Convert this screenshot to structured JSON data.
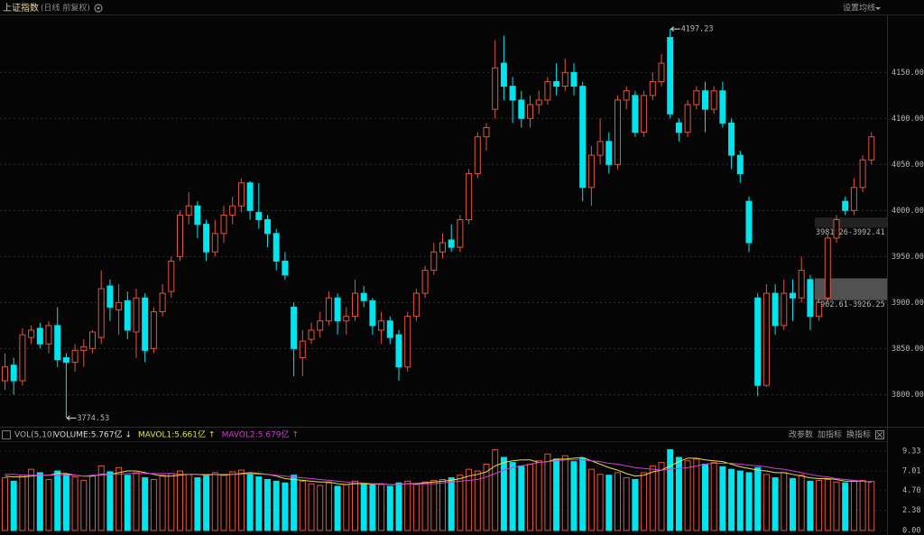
{
  "chart_data": {
    "type": "candlestick",
    "title": "上证指数",
    "subtitle": "(日线 前复权)",
    "settings_button": "设置均线",
    "up_color": "#e0533c",
    "down_color": "#00e4ee",
    "grid": true,
    "ylim": [
      3768,
      4214
    ],
    "yticks": [
      {
        "value": 3800,
        "label": "3800.00"
      },
      {
        "value": 3850,
        "label": "3850.00"
      },
      {
        "value": 3900,
        "label": "3900.00"
      },
      {
        "value": 3950,
        "label": "3950.00"
      },
      {
        "value": 4000,
        "label": "4000.00"
      },
      {
        "value": 4050,
        "label": "4050.00"
      },
      {
        "value": 4100,
        "label": "4100.00"
      },
      {
        "value": 4150,
        "label": "4150.00"
      }
    ],
    "candles": [
      [
        3815,
        3845,
        3805,
        3830
      ],
      [
        3832,
        3840,
        3800,
        3815
      ],
      [
        3815,
        3872,
        3810,
        3865
      ],
      [
        3862,
        3875,
        3855,
        3870
      ],
      [
        3872,
        3878,
        3850,
        3855
      ],
      [
        3855,
        3880,
        3845,
        3875
      ],
      [
        3875,
        3895,
        3830,
        3838
      ],
      [
        3840,
        3845,
        3774.53,
        3835
      ],
      [
        3835,
        3855,
        3825,
        3848
      ],
      [
        3848,
        3860,
        3830,
        3852
      ],
      [
        3850,
        3870,
        3845,
        3868
      ],
      [
        3862,
        3935,
        3855,
        3915
      ],
      [
        3918,
        3925,
        3880,
        3895
      ],
      [
        3892,
        3920,
        3865,
        3900
      ],
      [
        3902,
        3912,
        3860,
        3870
      ],
      [
        3868,
        3915,
        3840,
        3905
      ],
      [
        3905,
        3910,
        3835,
        3848
      ],
      [
        3850,
        3895,
        3845,
        3890
      ],
      [
        3890,
        3920,
        3885,
        3910
      ],
      [
        3912,
        3950,
        3905,
        3945
      ],
      [
        3950,
        4000,
        3945,
        3995
      ],
      [
        3995,
        4020,
        3985,
        4005
      ],
      [
        4005,
        4010,
        3970,
        3985
      ],
      [
        3985,
        3990,
        3945,
        3955
      ],
      [
        3955,
        3990,
        3950,
        3975
      ],
      [
        3975,
        4005,
        3965,
        3995
      ],
      [
        3995,
        4015,
        3985,
        4005
      ],
      [
        4005,
        4035,
        3998,
        4030
      ],
      [
        4030,
        4032,
        3990,
        4000
      ],
      [
        3998,
        4030,
        3980,
        3990
      ],
      [
        3990,
        3995,
        3960,
        3975
      ],
      [
        3975,
        3980,
        3935,
        3945
      ],
      [
        3945,
        3955,
        3925,
        3930
      ],
      [
        3895,
        3900,
        3820,
        3850
      ],
      [
        3840,
        3870,
        3820,
        3858
      ],
      [
        3860,
        3878,
        3855,
        3870
      ],
      [
        3870,
        3890,
        3862,
        3880
      ],
      [
        3880,
        3912,
        3875,
        3905
      ],
      [
        3905,
        3910,
        3865,
        3880
      ],
      [
        3880,
        3895,
        3865,
        3885
      ],
      [
        3885,
        3925,
        3880,
        3910
      ],
      [
        3910,
        3918,
        3895,
        3902
      ],
      [
        3902,
        3905,
        3865,
        3875
      ],
      [
        3870,
        3890,
        3855,
        3880
      ],
      [
        3880,
        3885,
        3855,
        3862
      ],
      [
        3865,
        3870,
        3815,
        3830
      ],
      [
        3830,
        3890,
        3825,
        3885
      ],
      [
        3885,
        3915,
        3880,
        3910
      ],
      [
        3910,
        3940,
        3905,
        3935
      ],
      [
        3935,
        3965,
        3930,
        3955
      ],
      [
        3955,
        3975,
        3948,
        3965
      ],
      [
        3968,
        3985,
        3955,
        3960
      ],
      [
        3960,
        3995,
        3955,
        3990
      ],
      [
        3990,
        4045,
        3985,
        4040
      ],
      [
        4040,
        4085,
        4035,
        4080
      ],
      [
        4080,
        4095,
        4065,
        4090
      ],
      [
        4110,
        4185,
        4100,
        4155
      ],
      [
        4160,
        4190,
        4120,
        4135
      ],
      [
        4135,
        4145,
        4095,
        4120
      ],
      [
        4120,
        4130,
        4090,
        4100
      ],
      [
        4100,
        4125,
        4090,
        4115
      ],
      [
        4115,
        4130,
        4105,
        4120
      ],
      [
        4120,
        4145,
        4115,
        4140
      ],
      [
        4140,
        4160,
        4125,
        4135
      ],
      [
        4135,
        4165,
        4130,
        4150
      ],
      [
        4150,
        4160,
        4125,
        4135
      ],
      [
        4135,
        4140,
        4010,
        4025
      ],
      [
        4025,
        4070,
        4005,
        4060
      ],
      [
        4060,
        4100,
        4050,
        4075
      ],
      [
        4075,
        4085,
        4040,
        4050
      ],
      [
        4050,
        4125,
        4045,
        4120
      ],
      [
        4120,
        4135,
        4110,
        4130
      ],
      [
        4125,
        4130,
        4080,
        4085
      ],
      [
        4085,
        4130,
        4080,
        4125
      ],
      [
        4125,
        4150,
        4120,
        4140
      ],
      [
        4140,
        4170,
        4135,
        4160
      ],
      [
        4188,
        4197.23,
        4100,
        4105
      ],
      [
        4095,
        4100,
        4075,
        4085
      ],
      [
        4085,
        4120,
        4080,
        4115
      ],
      [
        4115,
        4135,
        4110,
        4130
      ],
      [
        4130,
        4140,
        4085,
        4110
      ],
      [
        4110,
        4135,
        4105,
        4130
      ],
      [
        4130,
        4140,
        4090,
        4095
      ],
      [
        4095,
        4100,
        4045,
        4060
      ],
      [
        4060,
        4065,
        4030,
        4040
      ],
      [
        4010,
        4015,
        3955,
        3965
      ],
      [
        3905,
        3910,
        3798,
        3810
      ],
      [
        3810,
        3920,
        3808,
        3910
      ],
      [
        3910,
        3920,
        3865,
        3875
      ],
      [
        3875,
        3925,
        3870,
        3910
      ],
      [
        3910,
        3925,
        3880,
        3905
      ],
      [
        3905,
        3950,
        3900,
        3935
      ],
      [
        3925,
        3930,
        3870,
        3885
      ],
      [
        3885,
        3905,
        3880,
        3900
      ],
      [
        3905,
        3975,
        3900,
        3970
      ],
      [
        3970,
        3995,
        3965,
        3990
      ],
      [
        4010,
        4015,
        3995,
        4000
      ],
      [
        4000,
        4035,
        3995,
        4025
      ],
      [
        4025,
        4060,
        4020,
        4055
      ],
      [
        4055,
        4085,
        4050,
        4080
      ]
    ],
    "gaps": [
      {
        "low": 3902.61,
        "high": 3926.25,
        "label": "3902.61-3926.25"
      },
      {
        "low": 3981.26,
        "high": 3992.41,
        "label": "3981.26-3992.41"
      }
    ],
    "volume_panel": {
      "title": "VOL(5,10)",
      "buttons": [
        "改参数",
        "加指标",
        "换指标"
      ],
      "volume_legend": {
        "text": "VOLUME:5.767亿",
        "arrow": "↓"
      },
      "ylim": [
        0,
        10.4
      ],
      "yticks": [
        {
          "value": 0,
          "label": "0.00"
        },
        2.38,
        {
          "value": 4.7,
          "label": "4.70"
        },
        7.01,
        9.33
      ],
      "volume": [
        6.2,
        5.8,
        6.5,
        7.2,
        6.8,
        6.0,
        7.0,
        6.6,
        6.3,
        5.9,
        6.4,
        7.6,
        6.9,
        7.4,
        6.5,
        6.8,
        6.2,
        6.0,
        6.5,
        6.7,
        7.0,
        6.6,
        6.2,
        6.4,
        6.8,
        6.5,
        6.9,
        7.1,
        6.6,
        6.3,
        6.0,
        5.8,
        5.6,
        6.5,
        5.8,
        5.5,
        5.3,
        5.6,
        5.2,
        5.4,
        5.8,
        5.5,
        5.3,
        5.4,
        5.2,
        5.6,
        5.8,
        5.5,
        5.7,
        5.9,
        6.0,
        6.2,
        6.5,
        7.2,
        7.0,
        7.8,
        9.5,
        8.6,
        8.0,
        7.6,
        7.8,
        8.2,
        9.0,
        8.4,
        8.8,
        8.1,
        8.5,
        7.2,
        6.6,
        6.5,
        6.8,
        6.2,
        6.0,
        6.8,
        7.6,
        8.0,
        9.5,
        8.6,
        8.2,
        8.4,
        7.8,
        8.0,
        7.5,
        7.2,
        7.0,
        6.8,
        7.4,
        6.6,
        6.2,
        6.8,
        6.1,
        6.5,
        5.8,
        5.9,
        6.0,
        5.7,
        5.6,
        5.8,
        5.9,
        5.767
      ],
      "series": [
        {
          "legend": "MAVOL1:5.661亿",
          "arrow": "↑",
          "color": "#e6e03a",
          "values": [
            6.4,
            6.3,
            6.3,
            6.4,
            6.5,
            6.5,
            6.7,
            6.7,
            6.5,
            6.4,
            6.4,
            6.6,
            6.6,
            6.8,
            7.0,
            7.0,
            6.8,
            6.6,
            6.4,
            6.4,
            6.5,
            6.6,
            6.6,
            6.5,
            6.6,
            6.5,
            6.6,
            6.7,
            6.8,
            6.7,
            6.6,
            6.4,
            6.1,
            6.0,
            5.9,
            5.8,
            5.7,
            5.7,
            5.5,
            5.4,
            5.5,
            5.5,
            5.4,
            5.5,
            5.4,
            5.4,
            5.5,
            5.5,
            5.6,
            5.7,
            5.8,
            5.9,
            6.1,
            6.4,
            6.6,
            6.9,
            7.6,
            8.0,
            8.2,
            8.3,
            8.3,
            8.0,
            8.1,
            8.4,
            8.4,
            8.5,
            8.6,
            8.2,
            7.8,
            7.4,
            7.1,
            6.7,
            6.4,
            6.5,
            6.9,
            7.1,
            7.6,
            8.1,
            8.5,
            8.5,
            8.3,
            8.2,
            8.1,
            7.8,
            7.5,
            7.3,
            7.1,
            7.0,
            6.8,
            6.8,
            6.6,
            6.4,
            6.2,
            6.1,
            6.1,
            6.0,
            5.8,
            5.8,
            5.8,
            5.661
          ]
        },
        {
          "legend": "MAVOL2:5.679亿",
          "arrow": "↑",
          "color": "#d23ed6",
          "values": [
            6.6,
            6.6,
            6.5,
            6.5,
            6.5,
            6.5,
            6.5,
            6.5,
            6.5,
            6.4,
            6.5,
            6.5,
            6.6,
            6.6,
            6.7,
            6.7,
            6.7,
            6.7,
            6.7,
            6.7,
            6.6,
            6.6,
            6.6,
            6.6,
            6.6,
            6.6,
            6.6,
            6.6,
            6.7,
            6.6,
            6.6,
            6.5,
            6.4,
            6.3,
            6.2,
            6.1,
            6.0,
            5.9,
            5.8,
            5.7,
            5.6,
            5.6,
            5.5,
            5.5,
            5.4,
            5.4,
            5.5,
            5.4,
            5.5,
            5.5,
            5.6,
            5.7,
            5.8,
            5.9,
            6.0,
            6.3,
            6.7,
            7.1,
            7.4,
            7.6,
            7.8,
            8.0,
            8.1,
            8.2,
            8.3,
            8.3,
            8.3,
            8.2,
            8.1,
            7.9,
            7.8,
            7.6,
            7.4,
            7.3,
            7.2,
            7.1,
            7.2,
            7.3,
            7.4,
            7.6,
            7.8,
            7.9,
            7.9,
            7.9,
            7.8,
            7.7,
            7.6,
            7.5,
            7.3,
            7.2,
            7.0,
            6.8,
            6.6,
            6.4,
            6.3,
            6.1,
            6.0,
            5.9,
            5.8,
            5.679
          ]
        }
      ]
    }
  }
}
